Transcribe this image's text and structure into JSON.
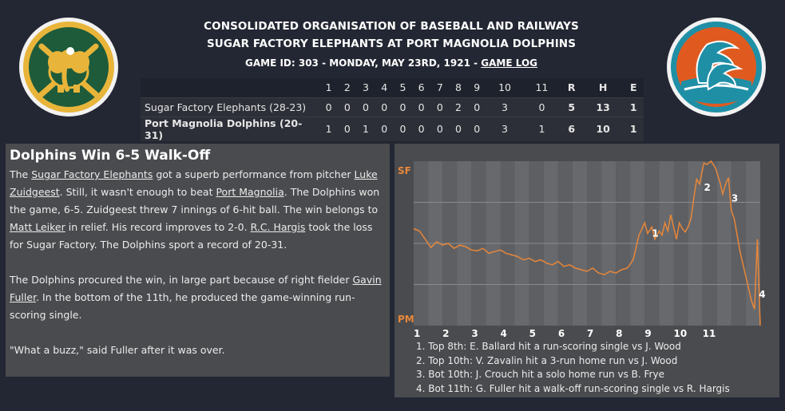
{
  "header": {
    "league": "CONSOLIDATED ORGANISATION OF BASEBALL AND RAILWAYS",
    "matchup": "SUGAR FACTORY ELEPHANTS AT PORT MAGNOLIA DOLPHINS",
    "game_info": "GAME ID: 303 - MONDAY, MAY 23RD, 1921 - ",
    "game_log_link": "GAME LOG"
  },
  "logos": {
    "away_icon": "elephant-logo",
    "home_icon": "dolphin-logo",
    "away_colors": [
      "#1e5b3a",
      "#e8b53a"
    ],
    "home_colors": [
      "#e05a20",
      "#1f8fa6"
    ]
  },
  "linescore": {
    "innings": [
      "1",
      "2",
      "3",
      "4",
      "5",
      "6",
      "7",
      "8",
      "9",
      "10",
      "11"
    ],
    "totals_headers": [
      "R",
      "H",
      "E"
    ],
    "away": {
      "team": "Sugar Factory Elephants (28-23)",
      "runs": [
        "0",
        "0",
        "0",
        "0",
        "0",
        "0",
        "0",
        "2",
        "0",
        "3",
        "0"
      ],
      "R": "5",
      "H": "13",
      "E": "1"
    },
    "home": {
      "team": "Port Magnolia Dolphins (20-31)",
      "runs": [
        "1",
        "0",
        "1",
        "0",
        "0",
        "0",
        "0",
        "0",
        "0",
        "3",
        "1"
      ],
      "R": "6",
      "H": "10",
      "E": "1"
    }
  },
  "story": {
    "headline": "Dolphins Win 6-5 Walk-Off",
    "p1": {
      "t1": "The ",
      "away_team": "Sugar Factory Elephants",
      "t2": " got a superb performance from pitcher ",
      "pitcher": "Luke Zuidgeest",
      "t3": ". Still, it wasn't enough to beat ",
      "home_team": "Port Magnolia",
      "t4": ". The Dolphins won the game, 6-5. Zuidgeest threw 7 innings of 6-hit ball. The win belongs to ",
      "winner": "Matt Leiker",
      "t5": " in relief. His record improves to 2-0. ",
      "loser": "R.C. Hargis",
      "t6": " took the loss for Sugar Factory. The Dolphins sport a record of 20-31."
    },
    "p2": {
      "t1": "The Dolphins procured the win, in large part because of right fielder ",
      "hero": "Gavin Fuller",
      "t2": ". In the bottom of the 11th, he produced the game-winning run-scoring single."
    },
    "p3": "\"What a buzz,\" said Fuller after it was over."
  },
  "chart_data": {
    "type": "line",
    "title": "",
    "y_top_label": "SF",
    "y_bottom_label": "PM",
    "ylim": [
      -1,
      1
    ],
    "x_tick_labels": [
      "1",
      "2",
      "3",
      "4",
      "5",
      "6",
      "7",
      "8",
      "9",
      "10",
      "11"
    ],
    "line_color": "#e8873a",
    "x": [
      0,
      0.2,
      0.4,
      0.6,
      0.8,
      1.0,
      1.2,
      1.4,
      1.6,
      1.8,
      2.0,
      2.2,
      2.4,
      2.6,
      2.8,
      3.0,
      3.2,
      3.4,
      3.6,
      3.8,
      4.0,
      4.2,
      4.4,
      4.6,
      4.8,
      5.0,
      5.2,
      5.4,
      5.6,
      5.8,
      6.0,
      6.2,
      6.4,
      6.6,
      6.8,
      7.0,
      7.2,
      7.4,
      7.6,
      7.8,
      8.0,
      8.1,
      8.25,
      8.35,
      8.5,
      8.6,
      8.7,
      8.8,
      8.9,
      9.0,
      9.1,
      9.2,
      9.3,
      9.4,
      9.5,
      9.6,
      9.7,
      9.8,
      9.9,
      10.0,
      10.05,
      10.15,
      10.3,
      10.45,
      10.6,
      10.7,
      10.8,
      10.9,
      11.0,
      11.1,
      11.2,
      11.3,
      11.4,
      11.5,
      11.6,
      11.7,
      11.8,
      11.9,
      12.0
    ],
    "values": [
      0.18,
      0.15,
      0.05,
      -0.05,
      0.02,
      -0.02,
      0.0,
      -0.06,
      -0.02,
      -0.04,
      -0.08,
      -0.09,
      -0.06,
      -0.12,
      -0.1,
      -0.08,
      -0.12,
      -0.14,
      -0.16,
      -0.2,
      -0.18,
      -0.22,
      -0.2,
      -0.24,
      -0.26,
      -0.22,
      -0.28,
      -0.26,
      -0.3,
      -0.32,
      -0.34,
      -0.3,
      -0.36,
      -0.38,
      -0.34,
      -0.36,
      -0.32,
      -0.3,
      -0.2,
      0.1,
      0.25,
      0.12,
      0.2,
      0.05,
      0.15,
      0.1,
      0.25,
      0.15,
      0.35,
      0.2,
      0.05,
      0.25,
      0.18,
      0.14,
      0.2,
      0.3,
      0.55,
      0.78,
      0.72,
      0.9,
      0.98,
      0.96,
      1.0,
      0.92,
      0.75,
      0.6,
      0.72,
      0.8,
      0.4,
      0.3,
      0.1,
      -0.1,
      -0.25,
      -0.4,
      -0.55,
      -0.7,
      -0.8,
      0.05,
      -1.0
    ],
    "event_markers": [
      {
        "label": "1",
        "x": 8.25,
        "y": 0.12
      },
      {
        "label": "2",
        "x": 10.05,
        "y": 0.68
      },
      {
        "label": "3",
        "x": 11.0,
        "y": 0.55
      },
      {
        "label": "4",
        "x": 11.95,
        "y": -0.62
      }
    ],
    "events": [
      "1. Top 8th: E. Ballard hit a run-scoring single vs J. Wood",
      "2. Top 10th: V. Zavalin hit a 3-run home run vs J. Wood",
      "3. Bot 10th: J. Crouch hit a solo home run vs B. Frye",
      "4. Bot 11th: G. Fuller hit a walk-off run-scoring single vs R. Hargis"
    ]
  }
}
